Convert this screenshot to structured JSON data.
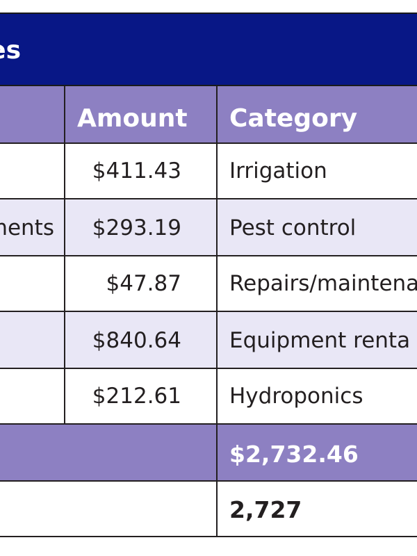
{
  "table": {
    "title_fragment": "es",
    "headers": {
      "amount": "Amount",
      "category": "Category"
    },
    "rows": [
      {
        "description": "",
        "amount": "$411.43",
        "category": "Irrigation"
      },
      {
        "description": "ments",
        "amount": "$293.19",
        "category": "Pest control"
      },
      {
        "description": "",
        "amount": "$47.87",
        "category": "Repairs/maintena"
      },
      {
        "description": "",
        "amount": "$840.64",
        "category": "Equipment renta"
      },
      {
        "description": "",
        "amount": "$212.61",
        "category": "Hydroponics"
      }
    ],
    "total": "$2,732.46",
    "count": "2,727"
  },
  "colors": {
    "title_bg": "#081786",
    "header_bg": "#8d80c2",
    "row_shade": "#e9e7f6",
    "border": "#231f20"
  }
}
